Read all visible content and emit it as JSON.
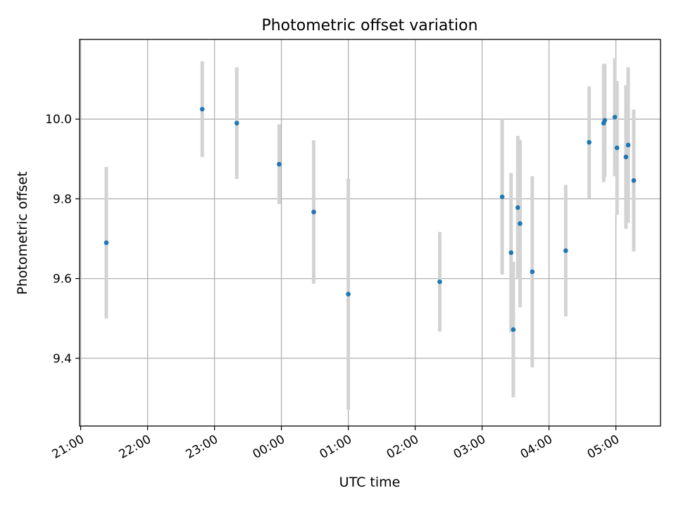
{
  "chart_data": {
    "type": "scatter",
    "title": "Photometric offset variation",
    "xlabel": "UTC time",
    "ylabel": "Photometric offset",
    "x_start": "21:00",
    "xlim": [
      "20:59",
      "05:40"
    ],
    "ylim": [
      9.23,
      10.2
    ],
    "x_ticks": [
      "21:00",
      "22:00",
      "23:00",
      "00:00",
      "01:00",
      "02:00",
      "03:00",
      "04:00",
      "05:00"
    ],
    "y_ticks": [
      9.4,
      9.6,
      9.8,
      10.0
    ],
    "y_tick_labels": [
      "9.4",
      "9.6",
      "9.8",
      "10.0"
    ],
    "grid": true,
    "marker_color": "#1f77b4",
    "errorbar_color": "#d3d3d3",
    "points": [
      {
        "x": "21:23",
        "y": 9.69,
        "err": 0.19
      },
      {
        "x": "22:49",
        "y": 10.025,
        "err": 0.12
      },
      {
        "x": "23:20",
        "y": 9.99,
        "err": 0.14
      },
      {
        "x": "23:58",
        "y": 9.887,
        "err": 0.1
      },
      {
        "x": "00:29",
        "y": 9.767,
        "err": 0.18
      },
      {
        "x": "01:00",
        "y": 9.561,
        "err": 0.29
      },
      {
        "x": "02:22",
        "y": 9.592,
        "err": 0.125
      },
      {
        "x": "03:18",
        "y": 9.805,
        "err": 0.195
      },
      {
        "x": "03:26",
        "y": 9.665,
        "err": 0.2
      },
      {
        "x": "03:28",
        "y": 9.472,
        "err": 0.17
      },
      {
        "x": "03:32",
        "y": 9.778,
        "err": 0.18
      },
      {
        "x": "03:34",
        "y": 9.738,
        "err": 0.21
      },
      {
        "x": "03:45",
        "y": 9.617,
        "err": 0.24
      },
      {
        "x": "04:15",
        "y": 9.67,
        "err": 0.165
      },
      {
        "x": "04:36",
        "y": 9.942,
        "err": 0.14
      },
      {
        "x": "04:49",
        "y": 9.99,
        "err": 0.148
      },
      {
        "x": "04:50",
        "y": 9.997,
        "err": 0.142
      },
      {
        "x": "04:59",
        "y": 10.005,
        "err": 0.148
      },
      {
        "x": "05:01",
        "y": 9.928,
        "err": 0.168
      },
      {
        "x": "05:09",
        "y": 9.905,
        "err": 0.18
      },
      {
        "x": "05:11",
        "y": 9.935,
        "err": 0.195
      },
      {
        "x": "05:16",
        "y": 9.846,
        "err": 0.178
      }
    ]
  }
}
